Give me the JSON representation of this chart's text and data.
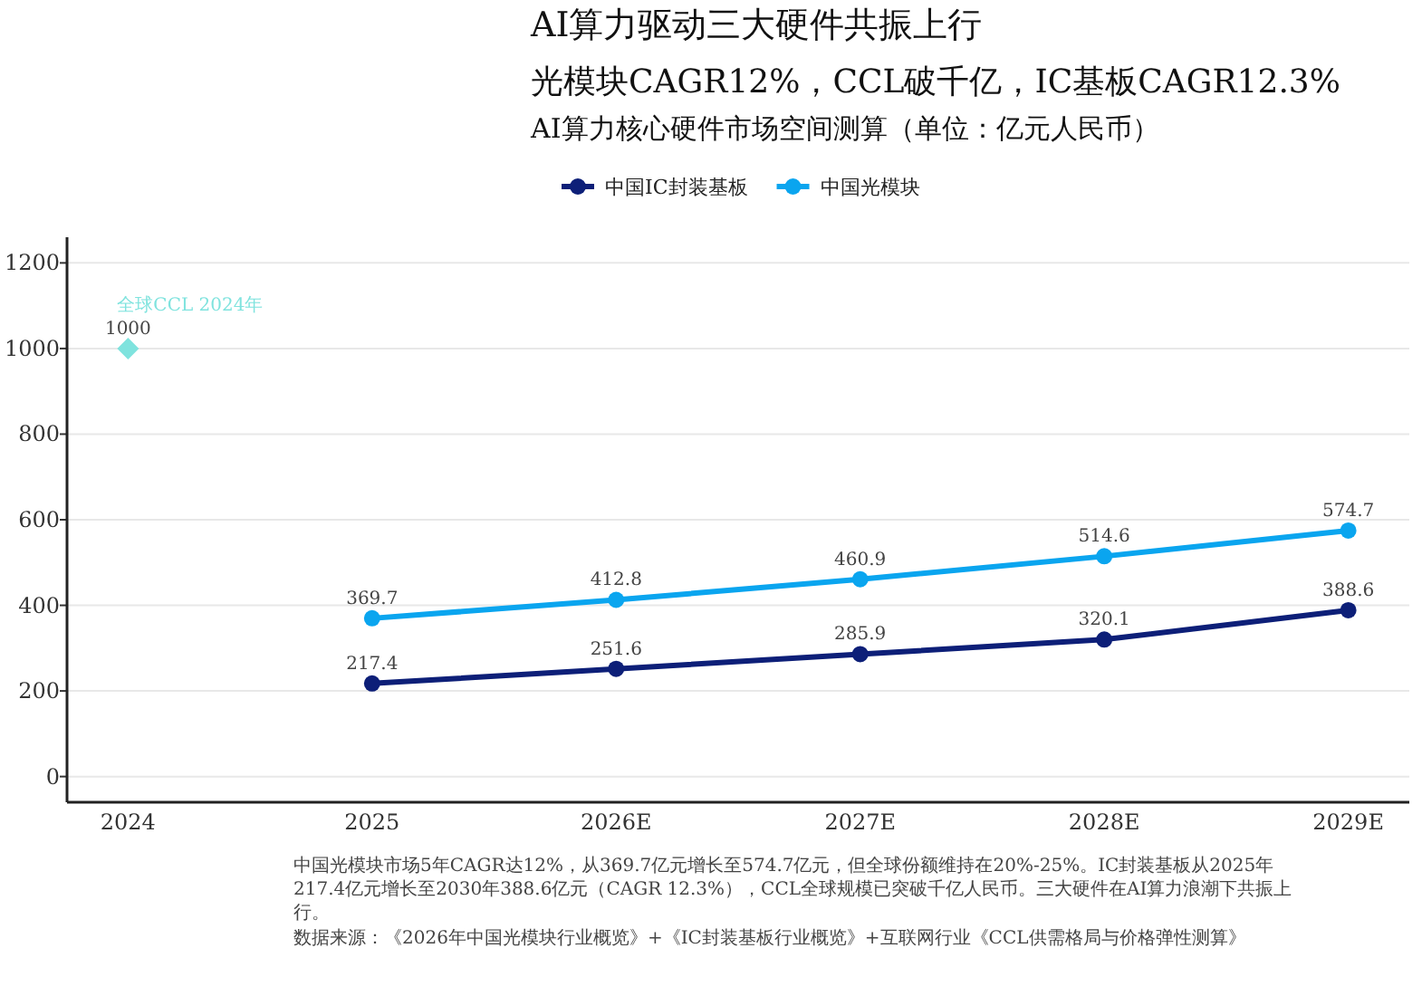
{
  "chart_data": {
    "type": "line",
    "title": "AI算力驱动三大硬件共振上行",
    "subtitle": "光模块CAGR12%，CCL破千亿，IC基板CAGR12.3%",
    "categories": [
      "2024",
      "2025",
      "2026E",
      "2027E",
      "2028E",
      "2029E"
    ],
    "series": [
      {
        "name": "中国IC封装基板",
        "color": "#0d1f78",
        "marker": "circle",
        "values": [
          null,
          217.4,
          251.6,
          285.9,
          320.1,
          388.6
        ]
      },
      {
        "name": "中国光模块",
        "color": "#0aa5ef",
        "marker": "circle",
        "values": [
          null,
          369.7,
          412.8,
          460.9,
          514.6,
          574.7
        ]
      },
      {
        "name": "全球CCL 2024年",
        "color": "#7fe3de",
        "type": "scatter",
        "marker": "diamond",
        "values": [
          1000,
          null,
          null,
          null,
          null,
          null
        ]
      }
    ],
    "ylim": [
      -60,
      1260
    ],
    "yticks": [
      0,
      200,
      400,
      600,
      800,
      1000,
      1200
    ],
    "grid": "y",
    "legend": "top",
    "data_labels": true,
    "annotations": [
      "AI算力核心硬件市场空间测算（单位：亿元人民币）",
      "中国光模块市场5年CAGR达12%，从369.7亿元增长至574.7亿元，但全球份额维持在20%-25%。IC封装基板从2025年217.4亿元增长至2030年388.6亿元（CAGR 12.3%），CCL全球规模已突破千亿人民币。三大硬件在AI算力浪潮下共振上行。",
      "数据来源：《2026年中国光模块行业概览》+《IC封装基板行业概览》+互联网行业《CCL供需格局与价格弹性测算》"
    ]
  }
}
